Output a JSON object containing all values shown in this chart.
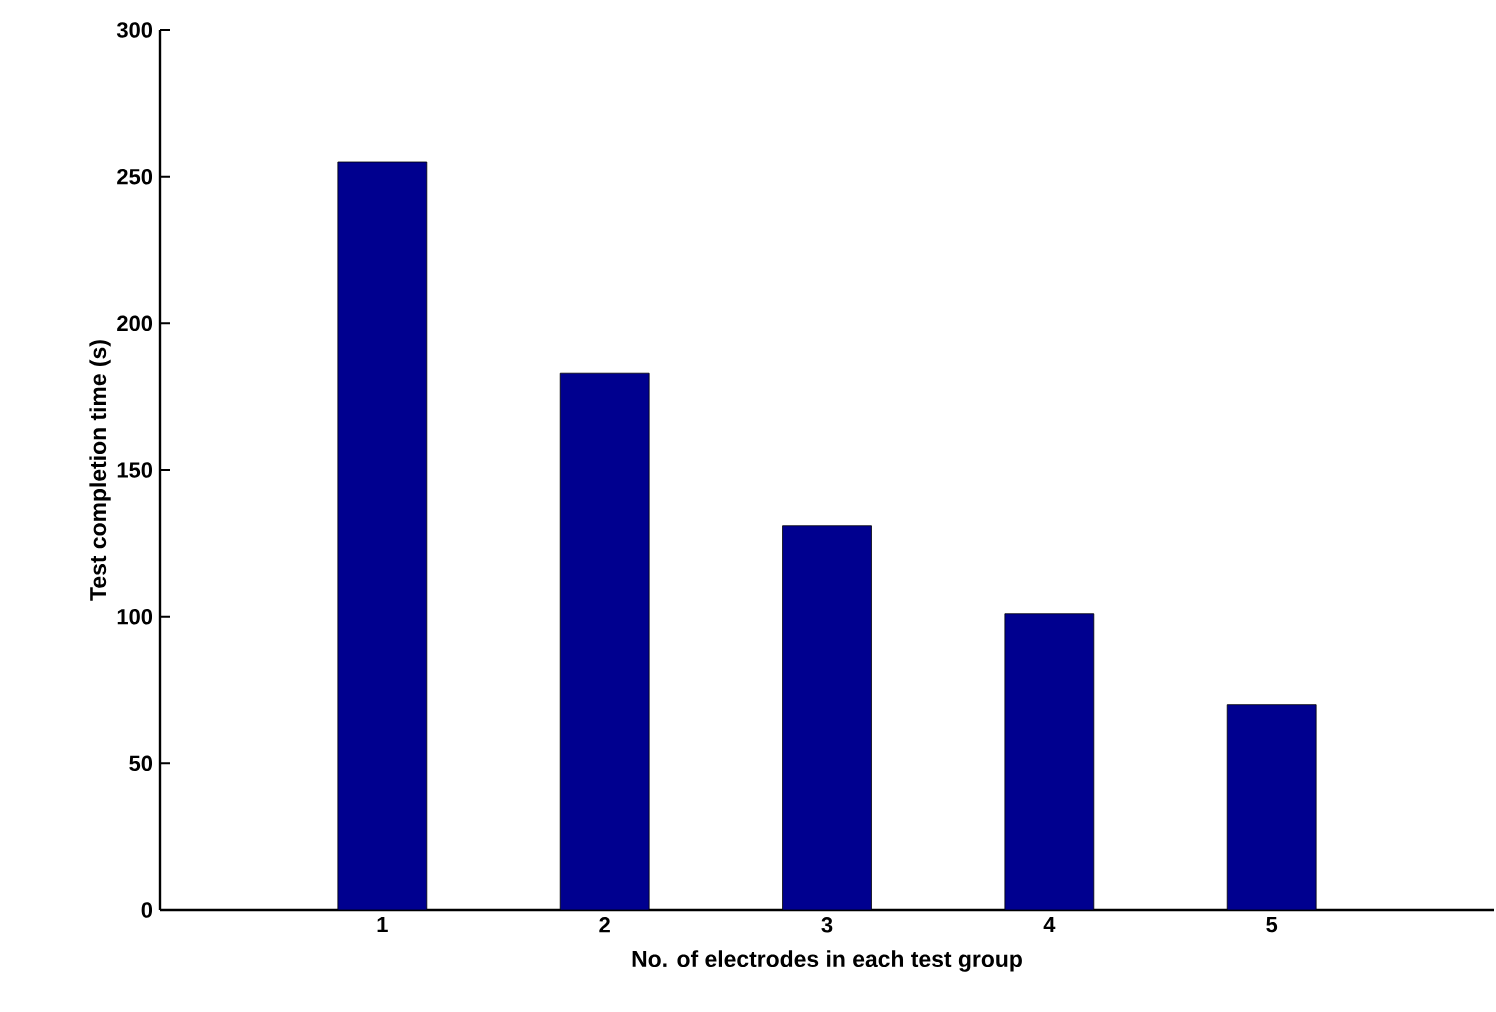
{
  "chart_data": {
    "type": "bar",
    "xlabel": "No. of electrodes in each test group",
    "ylabel": "Test completion time (s)",
    "x": [
      1,
      2,
      3,
      4,
      5
    ],
    "values": [
      255,
      183,
      131,
      101,
      70
    ],
    "color": "#00008f",
    "xlim": [
      0,
      6
    ],
    "xticks": [
      1,
      2,
      3,
      4,
      5
    ],
    "ylim": [
      0,
      300
    ],
    "yticks": [
      0,
      50,
      100,
      150,
      200,
      250,
      300
    ]
  }
}
